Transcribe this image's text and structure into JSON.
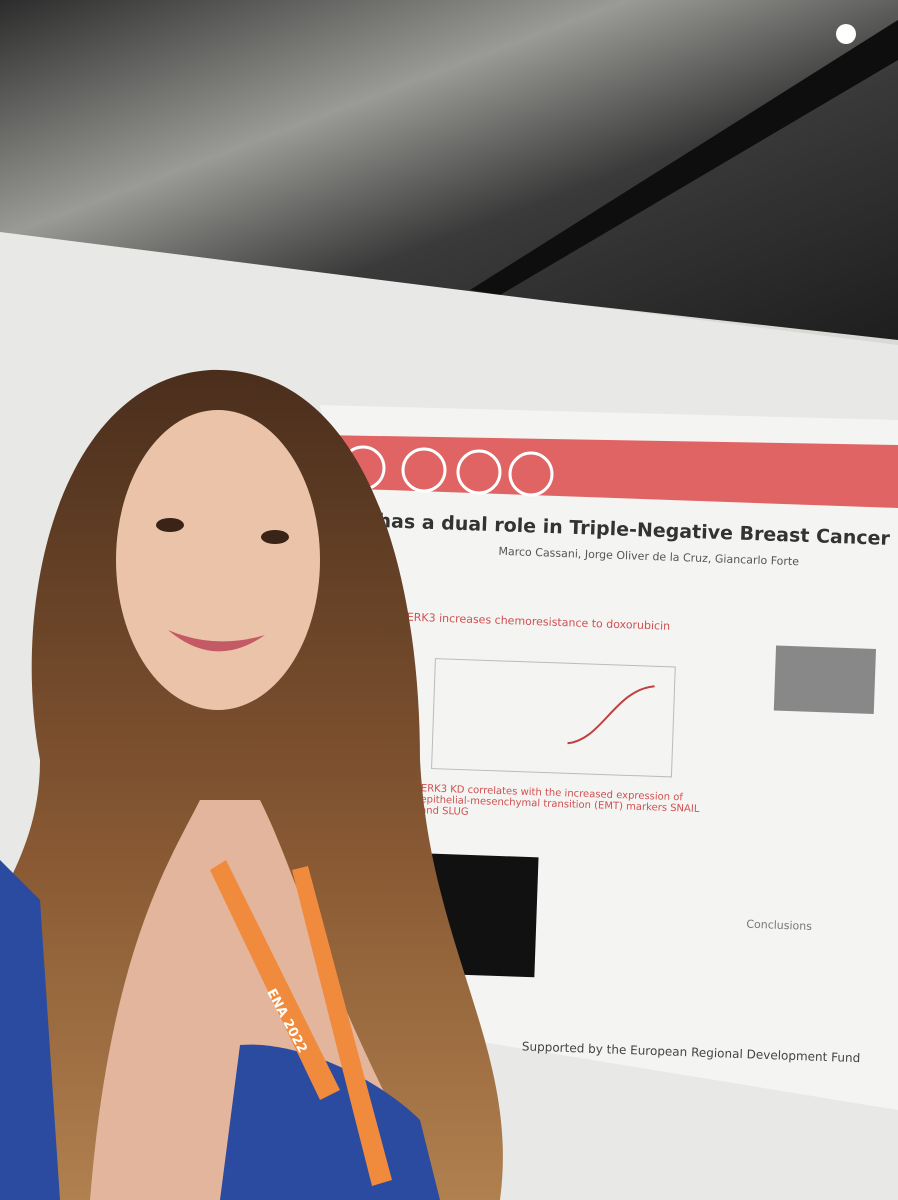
{
  "poster": {
    "title": "PKG has a dual role in Triple-Negative Breast Cancer",
    "authors": "Marco Cassani, Jorge Oliver de la Cruz, Giancarlo Forte",
    "section_1": "ERK3 increases chemoresistance to doxorubicin",
    "section_2": "ERK3 KD correlates with the increased expression of epithelial-mesenchymal transition (EMT) markers SNAIL and SLUG",
    "section_3": "Conclusions",
    "funding": "Supported by the European Regional Development Fund"
  },
  "lanyard": {
    "text": "ENA 2022"
  }
}
